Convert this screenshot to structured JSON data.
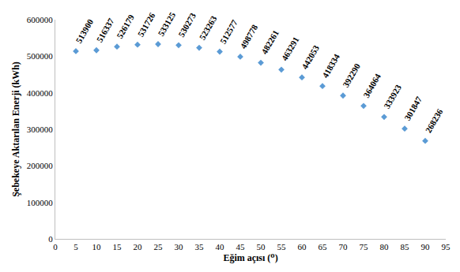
{
  "chart_data": {
    "type": "scatter",
    "x_label": "Eğim açısı (⁰)",
    "y_label": "Şebekeye Aktarılan Enerji (kWh)",
    "x": [
      5,
      10,
      15,
      20,
      25,
      30,
      35,
      40,
      45,
      50,
      55,
      60,
      65,
      70,
      75,
      80,
      85,
      90
    ],
    "values": [
      513900,
      516337,
      526179,
      531726,
      533125,
      530273,
      523263,
      512577,
      498778,
      482261,
      463291,
      442053,
      418334,
      392290,
      364064,
      333923,
      301847,
      268236
    ],
    "color": "#5b9bd5",
    "marker": "diamond",
    "data_labels": true,
    "grid": false,
    "xlim": [
      0,
      95
    ],
    "xticks": [
      0,
      5,
      10,
      15,
      20,
      25,
      30,
      35,
      40,
      45,
      50,
      55,
      60,
      65,
      70,
      75,
      80,
      85,
      90,
      95
    ],
    "ylim": [
      0,
      600000
    ],
    "yticks": [
      0,
      100000,
      200000,
      300000,
      400000,
      500000,
      600000
    ]
  }
}
